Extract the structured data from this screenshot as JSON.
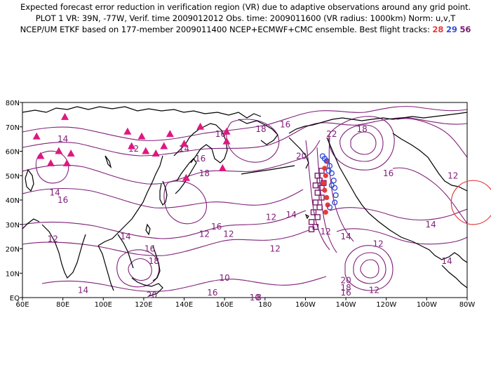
{
  "header": {
    "line1": "Expected forecast error reduction in verification region (VR) due to adaptive observations around any grid point.",
    "line2": "PLOT 1 VR: 39N, -77W, Verif. time 2009012012 Obs. time: 2009011600 (VR radius: 1000km) Norm: u,v,T",
    "line3_prefix": "NCEP/UM ETKF based on 177-member 2009011400 NCEP+ECMWF+CMC ensemble. Best flight tracks: ",
    "track_28": "28",
    "track_29": "29",
    "track_56": "56"
  },
  "colors": {
    "contour": "#80207a",
    "triangle": "#e0177f",
    "track_28": "#e83a3a",
    "track_29": "#3450d8",
    "track_56": "#7a1c6e",
    "vr_circle": "#e04040",
    "coast": "#000000"
  },
  "map": {
    "lat_ticks": [
      "EQ",
      "10N",
      "20N",
      "30N",
      "40N",
      "50N",
      "60N",
      "70N",
      "80N"
    ],
    "lon_ticks": [
      "60E",
      "80E",
      "100E",
      "120E",
      "140E",
      "160E",
      "180",
      "160W",
      "140W",
      "120W",
      "100W",
      "80W"
    ]
  },
  "contour_labels": [
    {
      "text": "16",
      "lon": 190,
      "lat": 71
    },
    {
      "text": "22",
      "lon": 213,
      "lat": 67
    },
    {
      "text": "18",
      "lon": 228,
      "lat": 69
    },
    {
      "text": "18",
      "lon": 178,
      "lat": 69
    },
    {
      "text": "16",
      "lon": 241,
      "lat": 51
    },
    {
      "text": "12",
      "lon": 273,
      "lat": 50
    },
    {
      "text": "20",
      "lon": 198,
      "lat": 58
    },
    {
      "text": "14",
      "lon": 80,
      "lat": 65
    },
    {
      "text": "14",
      "lon": 76,
      "lat": 43
    },
    {
      "text": "16",
      "lon": 80,
      "lat": 40
    },
    {
      "text": "12",
      "lon": 75,
      "lat": 24
    },
    {
      "text": "12",
      "lon": 115,
      "lat": 61
    },
    {
      "text": "14",
      "lon": 140,
      "lat": 61
    },
    {
      "text": "16",
      "lon": 148,
      "lat": 57
    },
    {
      "text": "18",
      "lon": 150,
      "lat": 51
    },
    {
      "text": "16",
      "lon": 158,
      "lat": 67
    },
    {
      "text": "12",
      "lon": 150,
      "lat": 26
    },
    {
      "text": "16",
      "lon": 156,
      "lat": 29
    },
    {
      "text": "12",
      "lon": 162,
      "lat": 26
    },
    {
      "text": "14",
      "lon": 111,
      "lat": 25
    },
    {
      "text": "16",
      "lon": 123,
      "lat": 20
    },
    {
      "text": "18",
      "lon": 125,
      "lat": 15
    },
    {
      "text": "20",
      "lon": 124,
      "lat": 1
    },
    {
      "text": "16",
      "lon": 154,
      "lat": 2
    },
    {
      "text": "14",
      "lon": 90,
      "lat": 3
    },
    {
      "text": "8",
      "lon": 177,
      "lat": 0
    },
    {
      "text": "10",
      "lon": 175,
      "lat": 0
    },
    {
      "text": "12",
      "lon": 185,
      "lat": 20
    },
    {
      "text": "14",
      "lon": 193,
      "lat": 34
    },
    {
      "text": "12",
      "lon": 210,
      "lat": 27
    },
    {
      "text": "14",
      "lon": 220,
      "lat": 25
    },
    {
      "text": "12",
      "lon": 236,
      "lat": 22
    },
    {
      "text": "14",
      "lon": 262,
      "lat": 30
    },
    {
      "text": "14",
      "lon": 270,
      "lat": 15
    },
    {
      "text": "20",
      "lon": 220,
      "lat": 7
    },
    {
      "text": "18",
      "lon": 220,
      "lat": 4
    },
    {
      "text": "16",
      "lon": 220,
      "lat": 2
    },
    {
      "text": "12",
      "lon": 234,
      "lat": 3
    },
    {
      "text": "12",
      "lon": 183,
      "lat": 33
    },
    {
      "text": "10",
      "lon": 160,
      "lat": 8
    }
  ],
  "triangles": [
    {
      "lon": 67,
      "lat": 66
    },
    {
      "lon": 81,
      "lat": 74
    },
    {
      "lon": 69,
      "lat": 58
    },
    {
      "lon": 74,
      "lat": 55
    },
    {
      "lon": 78,
      "lat": 60
    },
    {
      "lon": 82,
      "lat": 55
    },
    {
      "lon": 84,
      "lat": 59
    },
    {
      "lon": 112,
      "lat": 68
    },
    {
      "lon": 114,
      "lat": 62
    },
    {
      "lon": 119,
      "lat": 66
    },
    {
      "lon": 121,
      "lat": 60
    },
    {
      "lon": 126,
      "lat": 59
    },
    {
      "lon": 130,
      "lat": 62
    },
    {
      "lon": 133,
      "lat": 67
    },
    {
      "lon": 140,
      "lat": 63
    },
    {
      "lon": 148,
      "lat": 70
    },
    {
      "lon": 161,
      "lat": 68
    },
    {
      "lon": 161,
      "lat": 64
    },
    {
      "lon": 159,
      "lat": 53
    },
    {
      "lon": 141,
      "lat": 49
    }
  ],
  "track_28_points": [
    {
      "lon": 210.5,
      "lat": 56
    },
    {
      "lon": 209.5,
      "lat": 53
    },
    {
      "lon": 210,
      "lat": 50
    },
    {
      "lon": 209,
      "lat": 47
    },
    {
      "lon": 209.5,
      "lat": 44
    },
    {
      "lon": 210.5,
      "lat": 41
    },
    {
      "lon": 211,
      "lat": 38
    },
    {
      "lon": 210,
      "lat": 35
    }
  ],
  "track_29_points": [
    {
      "lon": 208.5,
      "lat": 58
    },
    {
      "lon": 210.5,
      "lat": 56
    },
    {
      "lon": 212,
      "lat": 54
    },
    {
      "lon": 213,
      "lat": 51
    },
    {
      "lon": 214,
      "lat": 48
    },
    {
      "lon": 214.5,
      "lat": 45
    },
    {
      "lon": 215,
      "lat": 42
    },
    {
      "lon": 214.5,
      "lat": 39
    },
    {
      "lon": 212,
      "lat": 37
    },
    {
      "lon": 209.5,
      "lat": 57
    },
    {
      "lon": 211.5,
      "lat": 52
    },
    {
      "lon": 213,
      "lat": 46
    }
  ],
  "track_56_points": [
    {
      "lon": 208,
      "lat": 52
    },
    {
      "lon": 206,
      "lat": 50
    },
    {
      "lon": 207,
      "lat": 48
    },
    {
      "lon": 205,
      "lat": 46
    },
    {
      "lon": 208,
      "lat": 45
    },
    {
      "lon": 206,
      "lat": 43
    },
    {
      "lon": 208,
      "lat": 41
    },
    {
      "lon": 205,
      "lat": 39
    },
    {
      "lon": 207,
      "lat": 37
    },
    {
      "lon": 204,
      "lat": 35
    },
    {
      "lon": 206,
      "lat": 33
    },
    {
      "lon": 203,
      "lat": 31
    },
    {
      "lon": 205,
      "lat": 29
    },
    {
      "lon": 203,
      "lat": 28
    },
    {
      "lon": 209,
      "lat": 47
    }
  ],
  "verification_region": {
    "lon": 283,
    "lat": 39,
    "radius_km": 1000
  }
}
